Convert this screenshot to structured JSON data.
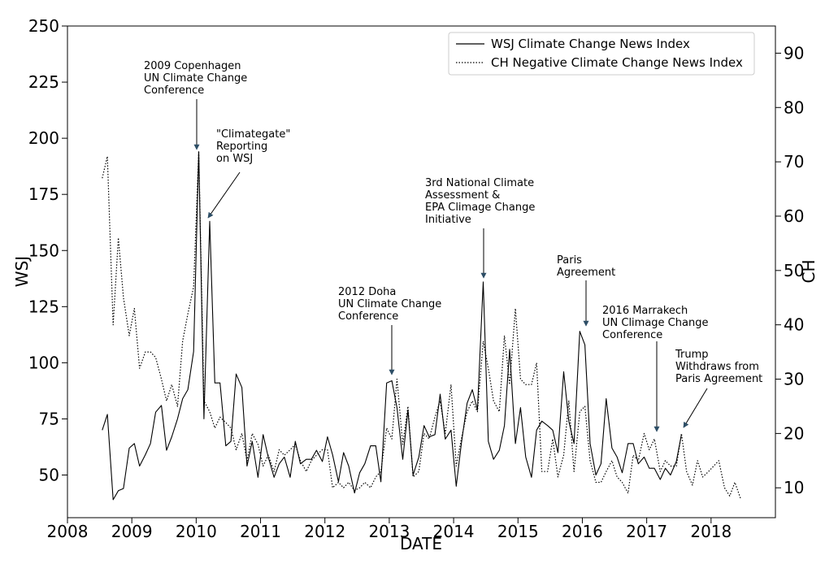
{
  "chart_data": {
    "type": "line",
    "xlabel": "DATE",
    "ylabel_left": "WSJ",
    "ylabel_right": "CH",
    "xlim": [
      2008,
      2019
    ],
    "ylim_left": [
      31,
      250
    ],
    "ylim_right": [
      4.5,
      95
    ],
    "x_ticks": [
      "2008",
      "2009",
      "2010",
      "2011",
      "2012",
      "2013",
      "2014",
      "2015",
      "2016",
      "2017",
      "2018"
    ],
    "y_left_ticks": [
      "50",
      "75",
      "100",
      "125",
      "150",
      "175",
      "200",
      "225",
      "250"
    ],
    "y_right_ticks": [
      "10",
      "20",
      "30",
      "40",
      "50",
      "60",
      "70",
      "80",
      "90"
    ],
    "legend_position": "top-right",
    "grid": false,
    "series": [
      {
        "name": "WSJ Climate Change News Index",
        "axis": "left",
        "style": "solid",
        "points": [
          [
            2008.54,
            70
          ],
          [
            2008.62,
            77
          ],
          [
            2008.71,
            39
          ],
          [
            2008.79,
            43
          ],
          [
            2008.87,
            44
          ],
          [
            2008.96,
            62
          ],
          [
            2009.04,
            64
          ],
          [
            2009.12,
            54
          ],
          [
            2009.21,
            59
          ],
          [
            2009.29,
            64
          ],
          [
            2009.37,
            78
          ],
          [
            2009.46,
            81
          ],
          [
            2009.54,
            61
          ],
          [
            2009.62,
            67
          ],
          [
            2009.71,
            75
          ],
          [
            2009.79,
            84
          ],
          [
            2009.87,
            88
          ],
          [
            2009.96,
            105
          ],
          [
            2010.04,
            194
          ],
          [
            2010.12,
            75
          ],
          [
            2010.21,
            163
          ],
          [
            2010.29,
            91
          ],
          [
            2010.37,
            91
          ],
          [
            2010.46,
            63
          ],
          [
            2010.54,
            65
          ],
          [
            2010.62,
            95
          ],
          [
            2010.71,
            89
          ],
          [
            2010.79,
            54
          ],
          [
            2010.87,
            65
          ],
          [
            2010.96,
            49
          ],
          [
            2011.04,
            68
          ],
          [
            2011.12,
            58
          ],
          [
            2011.21,
            49
          ],
          [
            2011.29,
            55
          ],
          [
            2011.37,
            58
          ],
          [
            2011.46,
            49
          ],
          [
            2011.54,
            65
          ],
          [
            2011.62,
            55
          ],
          [
            2011.71,
            57
          ],
          [
            2011.79,
            57
          ],
          [
            2011.87,
            61
          ],
          [
            2011.96,
            56
          ],
          [
            2012.04,
            67
          ],
          [
            2012.12,
            59
          ],
          [
            2012.21,
            47
          ],
          [
            2012.29,
            60
          ],
          [
            2012.37,
            54
          ],
          [
            2012.46,
            42
          ],
          [
            2012.54,
            51
          ],
          [
            2012.62,
            55
          ],
          [
            2012.71,
            63
          ],
          [
            2012.79,
            63
          ],
          [
            2012.87,
            47
          ],
          [
            2012.96,
            91
          ],
          [
            2013.04,
            92
          ],
          [
            2013.12,
            80
          ],
          [
            2013.21,
            57
          ],
          [
            2013.29,
            79
          ],
          [
            2013.37,
            50
          ],
          [
            2013.46,
            58
          ],
          [
            2013.54,
            72
          ],
          [
            2013.62,
            67
          ],
          [
            2013.71,
            68
          ],
          [
            2013.79,
            86
          ],
          [
            2013.87,
            66
          ],
          [
            2013.96,
            70
          ],
          [
            2014.04,
            45
          ],
          [
            2014.12,
            64
          ],
          [
            2014.21,
            82
          ],
          [
            2014.29,
            88
          ],
          [
            2014.37,
            79
          ],
          [
            2014.46,
            136
          ],
          [
            2014.54,
            65
          ],
          [
            2014.62,
            57
          ],
          [
            2014.71,
            61
          ],
          [
            2014.79,
            72
          ],
          [
            2014.87,
            106
          ],
          [
            2014.96,
            64
          ],
          [
            2015.04,
            80
          ],
          [
            2015.12,
            58
          ],
          [
            2015.21,
            49
          ],
          [
            2015.29,
            70
          ],
          [
            2015.37,
            74
          ],
          [
            2015.46,
            72
          ],
          [
            2015.54,
            70
          ],
          [
            2015.62,
            60
          ],
          [
            2015.71,
            96
          ],
          [
            2015.79,
            74
          ],
          [
            2015.87,
            64
          ],
          [
            2015.96,
            114
          ],
          [
            2016.04,
            108
          ],
          [
            2016.12,
            64
          ],
          [
            2016.21,
            50
          ],
          [
            2016.29,
            55
          ],
          [
            2016.37,
            84
          ],
          [
            2016.46,
            62
          ],
          [
            2016.54,
            58
          ],
          [
            2016.62,
            51
          ],
          [
            2016.71,
            64
          ],
          [
            2016.79,
            64
          ],
          [
            2016.87,
            55
          ],
          [
            2016.96,
            58
          ],
          [
            2017.04,
            53
          ],
          [
            2017.12,
            53
          ],
          [
            2017.21,
            48
          ],
          [
            2017.29,
            53
          ],
          [
            2017.37,
            50
          ],
          [
            2017.46,
            56
          ],
          [
            2017.54,
            68
          ]
        ]
      },
      {
        "name": "CH Negative Climate Change News Index",
        "axis": "right",
        "style": "dotted",
        "points": [
          [
            2008.54,
            67
          ],
          [
            2008.62,
            71
          ],
          [
            2008.71,
            40
          ],
          [
            2008.79,
            56
          ],
          [
            2008.87,
            45
          ],
          [
            2008.96,
            38
          ],
          [
            2009.04,
            43
          ],
          [
            2009.12,
            32
          ],
          [
            2009.21,
            35
          ],
          [
            2009.29,
            35
          ],
          [
            2009.37,
            34
          ],
          [
            2009.46,
            30
          ],
          [
            2009.54,
            26
          ],
          [
            2009.62,
            29
          ],
          [
            2009.71,
            25
          ],
          [
            2009.79,
            37
          ],
          [
            2009.87,
            42
          ],
          [
            2009.96,
            47
          ],
          [
            2010.04,
            72
          ],
          [
            2010.12,
            26
          ],
          [
            2010.21,
            24
          ],
          [
            2010.29,
            21
          ],
          [
            2010.37,
            23
          ],
          [
            2010.46,
            22
          ],
          [
            2010.54,
            21
          ],
          [
            2010.62,
            17
          ],
          [
            2010.71,
            20
          ],
          [
            2010.79,
            15
          ],
          [
            2010.87,
            20
          ],
          [
            2010.96,
            18
          ],
          [
            2011.04,
            14
          ],
          [
            2011.12,
            16
          ],
          [
            2011.21,
            13
          ],
          [
            2011.29,
            17
          ],
          [
            2011.37,
            16
          ],
          [
            2011.46,
            17
          ],
          [
            2011.54,
            18
          ],
          [
            2011.62,
            15
          ],
          [
            2011.71,
            13
          ],
          [
            2011.79,
            15
          ],
          [
            2011.87,
            16
          ],
          [
            2011.96,
            17
          ],
          [
            2012.04,
            17
          ],
          [
            2012.12,
            10
          ],
          [
            2012.21,
            11
          ],
          [
            2012.29,
            10
          ],
          [
            2012.37,
            11
          ],
          [
            2012.46,
            9.5
          ],
          [
            2012.54,
            10
          ],
          [
            2012.62,
            11
          ],
          [
            2012.71,
            10
          ],
          [
            2012.79,
            12
          ],
          [
            2012.87,
            13
          ],
          [
            2012.96,
            21
          ],
          [
            2013.04,
            19
          ],
          [
            2013.12,
            30
          ],
          [
            2013.21,
            18
          ],
          [
            2013.29,
            25
          ],
          [
            2013.37,
            12
          ],
          [
            2013.46,
            13
          ],
          [
            2013.54,
            20
          ],
          [
            2013.62,
            19
          ],
          [
            2013.71,
            23
          ],
          [
            2013.79,
            26
          ],
          [
            2013.87,
            20
          ],
          [
            2013.96,
            29
          ],
          [
            2014.04,
            14
          ],
          [
            2014.12,
            19
          ],
          [
            2014.21,
            24
          ],
          [
            2014.29,
            26
          ],
          [
            2014.37,
            24
          ],
          [
            2014.46,
            37
          ],
          [
            2014.54,
            32
          ],
          [
            2014.62,
            26
          ],
          [
            2014.71,
            24
          ],
          [
            2014.79,
            38
          ],
          [
            2014.87,
            29
          ],
          [
            2014.96,
            43
          ],
          [
            2015.04,
            30
          ],
          [
            2015.12,
            29
          ],
          [
            2015.21,
            29
          ],
          [
            2015.29,
            33
          ],
          [
            2015.37,
            13
          ],
          [
            2015.46,
            13
          ],
          [
            2015.54,
            19
          ],
          [
            2015.62,
            12
          ],
          [
            2015.71,
            16
          ],
          [
            2015.79,
            26
          ],
          [
            2015.87,
            13
          ],
          [
            2015.96,
            24
          ],
          [
            2016.04,
            25
          ],
          [
            2016.12,
            15
          ],
          [
            2016.21,
            11
          ],
          [
            2016.29,
            11
          ],
          [
            2016.37,
            13
          ],
          [
            2016.46,
            15
          ],
          [
            2016.54,
            12
          ],
          [
            2016.62,
            11
          ],
          [
            2016.71,
            9
          ],
          [
            2016.79,
            16
          ],
          [
            2016.87,
            15
          ],
          [
            2016.96,
            20
          ],
          [
            2017.04,
            17
          ],
          [
            2017.12,
            19
          ],
          [
            2017.21,
            13
          ],
          [
            2017.29,
            15
          ],
          [
            2017.37,
            14
          ],
          [
            2017.46,
            14
          ],
          [
            2017.54,
            20
          ],
          [
            2017.62,
            13
          ],
          [
            2017.71,
            10.5
          ],
          [
            2017.79,
            15
          ],
          [
            2017.87,
            12
          ],
          [
            2017.96,
            13
          ],
          [
            2018.04,
            14
          ],
          [
            2018.12,
            15
          ],
          [
            2018.21,
            10
          ],
          [
            2018.29,
            8.5
          ],
          [
            2018.37,
            11
          ],
          [
            2018.46,
            8
          ]
        ]
      }
    ],
    "annotations": [
      {
        "lines": [
          "2009 Copenhagen",
          "UN Climate Change",
          "Conference"
        ],
        "target_x": 2010.04,
        "target_y": 194
      },
      {
        "lines": [
          "\"Climategate\"",
          "Reporting",
          "on WSJ"
        ],
        "target_x": 2010.21,
        "target_y": 163
      },
      {
        "lines": [
          "2012 Doha",
          "UN Climate Change",
          "Conference"
        ],
        "target_x": 2013.04,
        "target_y": 92
      },
      {
        "lines": [
          "3rd National Climate",
          "Assessment &",
          "EPA Climage Change",
          "Initiative"
        ],
        "target_x": 2014.46,
        "target_y": 136
      },
      {
        "lines": [
          "Paris",
          "Agreement"
        ],
        "target_x": 2016.0,
        "target_y": 114
      },
      {
        "lines": [
          "2016 Marrakech",
          "UN Climage Change",
          "Conference"
        ],
        "target_x": 2017.12,
        "target_y": 66
      },
      {
        "lines": [
          "Trump",
          "Withdraws from",
          "Paris Agreement"
        ],
        "target_x": 2017.54,
        "target_y": 68
      }
    ]
  },
  "colors": {
    "line": "#000000",
    "arrow": "#2d4e66"
  }
}
